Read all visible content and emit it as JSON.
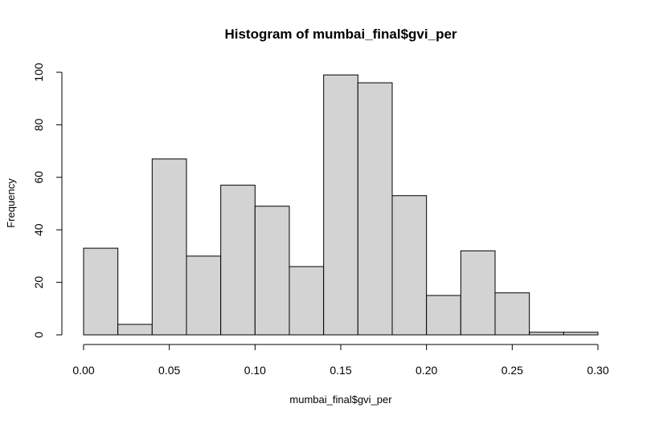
{
  "chart_data": {
    "type": "bar",
    "title": "Histogram of mumbai_final$gvi_per",
    "xlabel": "mumbai_final$gvi_per",
    "ylabel": "Frequency",
    "bin_edges": [
      0.0,
      0.02,
      0.04,
      0.06,
      0.08,
      0.1,
      0.12,
      0.14,
      0.16,
      0.18,
      0.2,
      0.22,
      0.24,
      0.26,
      0.28,
      0.3
    ],
    "values": [
      33,
      4,
      67,
      30,
      57,
      49,
      26,
      99,
      96,
      53,
      15,
      32,
      16,
      1,
      1
    ],
    "xlim": [
      0.0,
      0.3
    ],
    "ylim": [
      0,
      100
    ],
    "x_ticks": [
      0.0,
      0.05,
      0.1,
      0.15,
      0.2,
      0.25,
      0.3
    ],
    "x_tick_labels": [
      "0.00",
      "0.05",
      "0.10",
      "0.15",
      "0.20",
      "0.25",
      "0.30"
    ],
    "y_ticks": [
      0,
      20,
      40,
      60,
      80,
      100
    ],
    "y_tick_labels": [
      "0",
      "20",
      "40",
      "60",
      "80",
      "100"
    ],
    "bar_fill": "#d3d3d3",
    "bar_stroke": "#000000",
    "grid": false
  }
}
